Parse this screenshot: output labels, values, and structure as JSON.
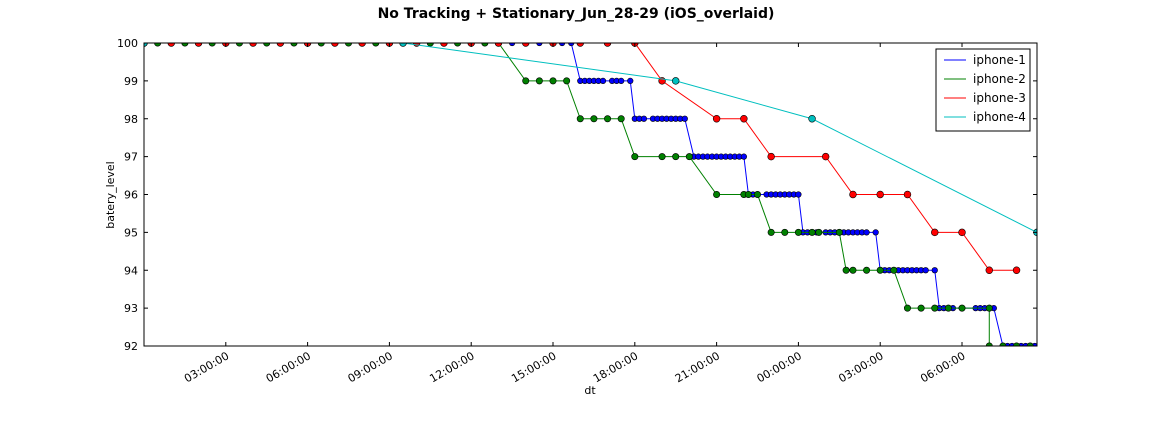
{
  "chart_data": {
    "type": "line",
    "title": "No Tracking + Stationary_Jun_28-29 (iOS_overlaid)",
    "xlabel": "dt",
    "ylabel": "batery_level",
    "x_start": "2016-06-28 00:00:00",
    "x_end": "2016-06-29 08:45:00",
    "ylim": [
      92,
      100
    ],
    "yticks": [
      92,
      93,
      94,
      95,
      96,
      97,
      98,
      99,
      100
    ],
    "xticks": [
      {
        "value": "2016-06-28 03:00:00",
        "label": "03:00:00"
      },
      {
        "value": "2016-06-28 06:00:00",
        "label": "06:00:00"
      },
      {
        "value": "2016-06-28 09:00:00",
        "label": "09:00:00"
      },
      {
        "value": "2016-06-28 12:00:00",
        "label": "12:00:00"
      },
      {
        "value": "2016-06-28 15:00:00",
        "label": "15:00:00"
      },
      {
        "value": "2016-06-28 18:00:00",
        "label": "18:00:00"
      },
      {
        "value": "2016-06-28 21:00:00",
        "label": "21:00:00"
      },
      {
        "value": "2016-06-29 00:00:00",
        "label": "00:00:00"
      },
      {
        "value": "2016-06-29 03:00:00",
        "label": "03:00:00"
      },
      {
        "value": "2016-06-29 06:00:00",
        "label": "06:00:00"
      }
    ],
    "legend_position": "top-right",
    "grid": false,
    "series": [
      {
        "name": "iphone-1",
        "color": "#0000ff",
        "marker_size": 2.8,
        "points": [
          [
            "2016-06-28 00:00",
            100
          ],
          [
            "2016-06-28 00:30",
            100
          ],
          [
            "2016-06-28 01:00",
            100
          ],
          [
            "2016-06-28 01:30",
            100
          ],
          [
            "2016-06-28 02:00",
            100
          ],
          [
            "2016-06-28 02:30",
            100
          ],
          [
            "2016-06-28 03:00",
            100
          ],
          [
            "2016-06-28 03:30",
            100
          ],
          [
            "2016-06-28 04:00",
            100
          ],
          [
            "2016-06-28 04:30",
            100
          ],
          [
            "2016-06-28 05:00",
            100
          ],
          [
            "2016-06-28 05:30",
            100
          ],
          [
            "2016-06-28 06:00",
            100
          ],
          [
            "2016-06-28 06:30",
            100
          ],
          [
            "2016-06-28 07:00",
            100
          ],
          [
            "2016-06-28 07:30",
            100
          ],
          [
            "2016-06-28 08:00",
            100
          ],
          [
            "2016-06-28 08:30",
            100
          ],
          [
            "2016-06-28 09:00",
            100
          ],
          [
            "2016-06-28 09:30",
            100
          ],
          [
            "2016-06-28 10:00",
            100
          ],
          [
            "2016-06-28 10:30",
            100
          ],
          [
            "2016-06-28 11:00",
            100
          ],
          [
            "2016-06-28 11:30",
            100
          ],
          [
            "2016-06-28 12:00",
            100
          ],
          [
            "2016-06-28 12:30",
            100
          ],
          [
            "2016-06-28 13:00",
            100
          ],
          [
            "2016-06-28 13:30",
            100
          ],
          [
            "2016-06-28 14:00",
            100
          ],
          [
            "2016-06-28 14:30",
            100
          ],
          [
            "2016-06-28 15:00",
            100
          ],
          [
            "2016-06-28 15:20",
            100
          ],
          [
            "2016-06-28 15:40",
            100
          ],
          [
            "2016-06-28 16:00",
            99
          ],
          [
            "2016-06-28 16:10",
            99
          ],
          [
            "2016-06-28 16:20",
            99
          ],
          [
            "2016-06-28 16:30",
            99
          ],
          [
            "2016-06-28 16:40",
            99
          ],
          [
            "2016-06-28 16:50",
            99
          ],
          [
            "2016-06-28 17:10",
            99
          ],
          [
            "2016-06-28 17:20",
            99
          ],
          [
            "2016-06-28 17:30",
            99
          ],
          [
            "2016-06-28 17:50",
            99
          ],
          [
            "2016-06-28 18:00",
            98
          ],
          [
            "2016-06-28 18:10",
            98
          ],
          [
            "2016-06-28 18:20",
            98
          ],
          [
            "2016-06-28 18:40",
            98
          ],
          [
            "2016-06-28 18:50",
            98
          ],
          [
            "2016-06-28 19:00",
            98
          ],
          [
            "2016-06-28 19:10",
            98
          ],
          [
            "2016-06-28 19:20",
            98
          ],
          [
            "2016-06-28 19:30",
            98
          ],
          [
            "2016-06-28 19:40",
            98
          ],
          [
            "2016-06-28 19:50",
            98
          ],
          [
            "2016-06-28 20:10",
            97
          ],
          [
            "2016-06-28 20:20",
            97
          ],
          [
            "2016-06-28 20:30",
            97
          ],
          [
            "2016-06-28 20:40",
            97
          ],
          [
            "2016-06-28 20:50",
            97
          ],
          [
            "2016-06-28 21:00",
            97
          ],
          [
            "2016-06-28 21:10",
            97
          ],
          [
            "2016-06-28 21:20",
            97
          ],
          [
            "2016-06-28 21:30",
            97
          ],
          [
            "2016-06-28 21:40",
            97
          ],
          [
            "2016-06-28 21:50",
            97
          ],
          [
            "2016-06-28 22:00",
            97
          ],
          [
            "2016-06-28 22:10",
            96
          ],
          [
            "2016-06-28 22:20",
            96
          ],
          [
            "2016-06-28 22:30",
            96
          ],
          [
            "2016-06-28 22:50",
            96
          ],
          [
            "2016-06-28 23:00",
            96
          ],
          [
            "2016-06-28 23:10",
            96
          ],
          [
            "2016-06-28 23:20",
            96
          ],
          [
            "2016-06-28 23:30",
            96
          ],
          [
            "2016-06-28 23:40",
            96
          ],
          [
            "2016-06-28 23:50",
            96
          ],
          [
            "2016-06-29 00:00",
            96
          ],
          [
            "2016-06-29 00:10",
            95
          ],
          [
            "2016-06-29 00:20",
            95
          ],
          [
            "2016-06-29 00:30",
            95
          ],
          [
            "2016-06-29 00:40",
            95
          ],
          [
            "2016-06-29 01:00",
            95
          ],
          [
            "2016-06-29 01:10",
            95
          ],
          [
            "2016-06-29 01:20",
            95
          ],
          [
            "2016-06-29 01:30",
            95
          ],
          [
            "2016-06-29 01:40",
            95
          ],
          [
            "2016-06-29 01:50",
            95
          ],
          [
            "2016-06-29 02:00",
            95
          ],
          [
            "2016-06-29 02:10",
            95
          ],
          [
            "2016-06-29 02:20",
            95
          ],
          [
            "2016-06-29 02:30",
            95
          ],
          [
            "2016-06-29 02:50",
            95
          ],
          [
            "2016-06-29 03:00",
            94
          ],
          [
            "2016-06-29 03:10",
            94
          ],
          [
            "2016-06-29 03:20",
            94
          ],
          [
            "2016-06-29 03:30",
            94
          ],
          [
            "2016-06-29 03:40",
            94
          ],
          [
            "2016-06-29 03:50",
            94
          ],
          [
            "2016-06-29 04:00",
            94
          ],
          [
            "2016-06-29 04:10",
            94
          ],
          [
            "2016-06-29 04:20",
            94
          ],
          [
            "2016-06-29 04:30",
            94
          ],
          [
            "2016-06-29 04:40",
            94
          ],
          [
            "2016-06-29 05:00",
            94
          ],
          [
            "2016-06-29 05:10",
            93
          ],
          [
            "2016-06-29 05:20",
            93
          ],
          [
            "2016-06-29 05:30",
            93
          ],
          [
            "2016-06-29 05:40",
            93
          ],
          [
            "2016-06-29 06:30",
            93
          ],
          [
            "2016-06-29 06:40",
            93
          ],
          [
            "2016-06-29 06:50",
            93
          ],
          [
            "2016-06-29 07:00",
            93
          ],
          [
            "2016-06-29 07:10",
            93
          ],
          [
            "2016-06-29 07:30",
            92
          ],
          [
            "2016-06-29 07:40",
            92
          ],
          [
            "2016-06-29 07:50",
            92
          ],
          [
            "2016-06-29 08:00",
            92
          ],
          [
            "2016-06-29 08:10",
            92
          ],
          [
            "2016-06-29 08:20",
            92
          ],
          [
            "2016-06-29 08:30",
            92
          ],
          [
            "2016-06-29 08:40",
            92
          ]
        ]
      },
      {
        "name": "iphone-2",
        "color": "#008000",
        "marker_size": 3.2,
        "points": [
          [
            "2016-06-28 00:00",
            100
          ],
          [
            "2016-06-28 00:30",
            100
          ],
          [
            "2016-06-28 01:00",
            100
          ],
          [
            "2016-06-28 01:30",
            100
          ],
          [
            "2016-06-28 02:00",
            100
          ],
          [
            "2016-06-28 02:30",
            100
          ],
          [
            "2016-06-28 03:00",
            100
          ],
          [
            "2016-06-28 03:30",
            100
          ],
          [
            "2016-06-28 04:00",
            100
          ],
          [
            "2016-06-28 04:30",
            100
          ],
          [
            "2016-06-28 05:00",
            100
          ],
          [
            "2016-06-28 05:30",
            100
          ],
          [
            "2016-06-28 06:00",
            100
          ],
          [
            "2016-06-28 06:30",
            100
          ],
          [
            "2016-06-28 07:00",
            100
          ],
          [
            "2016-06-28 07:30",
            100
          ],
          [
            "2016-06-28 08:00",
            100
          ],
          [
            "2016-06-28 08:30",
            100
          ],
          [
            "2016-06-28 09:00",
            100
          ],
          [
            "2016-06-28 09:30",
            100
          ],
          [
            "2016-06-28 10:00",
            100
          ],
          [
            "2016-06-28 10:30",
            100
          ],
          [
            "2016-06-28 11:00",
            100
          ],
          [
            "2016-06-28 11:30",
            100
          ],
          [
            "2016-06-28 12:00",
            100
          ],
          [
            "2016-06-28 12:30",
            100
          ],
          [
            "2016-06-28 13:00",
            100
          ],
          [
            "2016-06-28 14:00",
            99
          ],
          [
            "2016-06-28 14:30",
            99
          ],
          [
            "2016-06-28 15:00",
            99
          ],
          [
            "2016-06-28 15:30",
            99
          ],
          [
            "2016-06-28 16:00",
            98
          ],
          [
            "2016-06-28 16:30",
            98
          ],
          [
            "2016-06-28 17:00",
            98
          ],
          [
            "2016-06-28 17:30",
            98
          ],
          [
            "2016-06-28 18:00",
            97
          ],
          [
            "2016-06-28 19:00",
            97
          ],
          [
            "2016-06-28 19:30",
            97
          ],
          [
            "2016-06-28 20:00",
            97
          ],
          [
            "2016-06-28 21:00",
            96
          ],
          [
            "2016-06-28 22:00",
            96
          ],
          [
            "2016-06-28 22:10",
            96
          ],
          [
            "2016-06-28 22:30",
            96
          ],
          [
            "2016-06-28 23:00",
            95
          ],
          [
            "2016-06-28 23:30",
            95
          ],
          [
            "2016-06-29 00:00",
            95
          ],
          [
            "2016-06-29 00:30",
            95
          ],
          [
            "2016-06-29 00:45",
            95
          ],
          [
            "2016-06-29 01:30",
            95
          ],
          [
            "2016-06-29 01:45",
            94
          ],
          [
            "2016-06-29 02:00",
            94
          ],
          [
            "2016-06-29 02:30",
            94
          ],
          [
            "2016-06-29 03:00",
            94
          ],
          [
            "2016-06-29 03:30",
            94
          ],
          [
            "2016-06-29 04:00",
            93
          ],
          [
            "2016-06-29 04:30",
            93
          ],
          [
            "2016-06-29 05:00",
            93
          ],
          [
            "2016-06-29 05:30",
            93
          ],
          [
            "2016-06-29 06:00",
            93
          ],
          [
            "2016-06-29 07:00",
            93
          ],
          [
            "2016-06-29 07:00",
            92
          ],
          [
            "2016-06-29 07:30",
            92
          ],
          [
            "2016-06-29 08:00",
            92
          ],
          [
            "2016-06-29 08:30",
            92
          ]
        ]
      },
      {
        "name": "iphone-3",
        "color": "#ff0000",
        "marker_size": 3.4,
        "points": [
          [
            "2016-06-28 00:00",
            100
          ],
          [
            "2016-06-28 01:00",
            100
          ],
          [
            "2016-06-28 02:00",
            100
          ],
          [
            "2016-06-28 03:00",
            100
          ],
          [
            "2016-06-28 04:00",
            100
          ],
          [
            "2016-06-28 05:00",
            100
          ],
          [
            "2016-06-28 06:00",
            100
          ],
          [
            "2016-06-28 07:00",
            100
          ],
          [
            "2016-06-28 08:00",
            100
          ],
          [
            "2016-06-28 09:00",
            100
          ],
          [
            "2016-06-28 10:00",
            100
          ],
          [
            "2016-06-28 11:00",
            100
          ],
          [
            "2016-06-28 12:00",
            100
          ],
          [
            "2016-06-28 13:00",
            100
          ],
          [
            "2016-06-28 14:00",
            100
          ],
          [
            "2016-06-28 15:00",
            100
          ],
          [
            "2016-06-28 16:00",
            100
          ],
          [
            "2016-06-28 17:00",
            100
          ],
          [
            "2016-06-28 18:00",
            100
          ],
          [
            "2016-06-28 19:00",
            99
          ],
          [
            "2016-06-28 21:00",
            98
          ],
          [
            "2016-06-28 22:00",
            98
          ],
          [
            "2016-06-28 23:00",
            97
          ],
          [
            "2016-06-29 01:00",
            97
          ],
          [
            "2016-06-29 02:00",
            96
          ],
          [
            "2016-06-29 03:00",
            96
          ],
          [
            "2016-06-29 04:00",
            96
          ],
          [
            "2016-06-29 05:00",
            95
          ],
          [
            "2016-06-29 06:00",
            95
          ],
          [
            "2016-06-29 07:00",
            94
          ],
          [
            "2016-06-29 08:00",
            94
          ]
        ]
      },
      {
        "name": "iphone-4",
        "color": "#00bfbf",
        "marker_size": 3.4,
        "points": [
          [
            "2016-06-28 00:00",
            100
          ],
          [
            "2016-06-28 09:30",
            100
          ],
          [
            "2016-06-28 19:30",
            99
          ],
          [
            "2016-06-29 00:30",
            98
          ],
          [
            "2016-06-29 08:45",
            95
          ]
        ]
      }
    ]
  }
}
